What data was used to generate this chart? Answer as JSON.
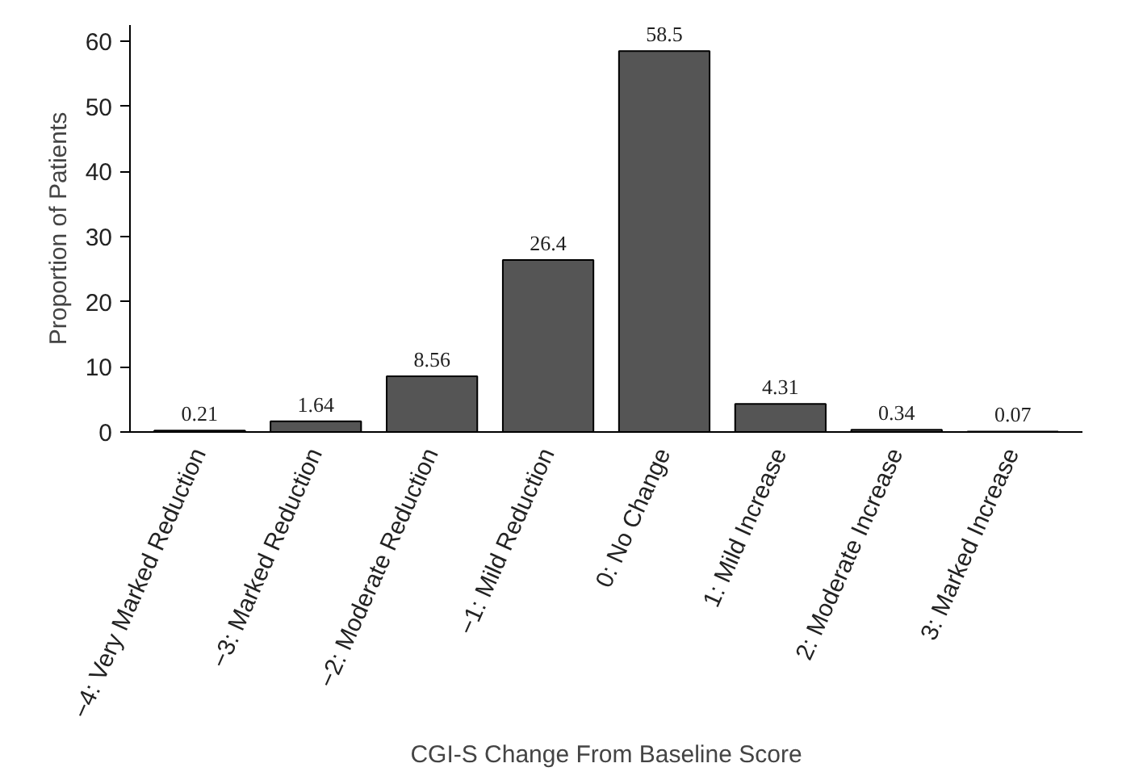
{
  "chart_data": {
    "type": "bar",
    "xlabel": "CGI-S Change From Baseline Score",
    "ylabel": "Proportion of Patients",
    "categories": [
      "−4: Very Marked Reduction",
      "−3: Marked Reduction",
      "−2: Moderate Reduction",
      "−1: Mild Reduction",
      "0: No Change",
      "1: Mild Increase",
      "2: Moderate Increase",
      "3: Marked Increase"
    ],
    "values": [
      0.21,
      1.64,
      8.56,
      26.4,
      58.5,
      4.31,
      0.34,
      0.07
    ],
    "color": "#555555",
    "ylim": [
      0,
      62.5
    ],
    "yticks": [
      0,
      10,
      20,
      30,
      40,
      50,
      60
    ],
    "data_labels": true,
    "grid": false
  }
}
